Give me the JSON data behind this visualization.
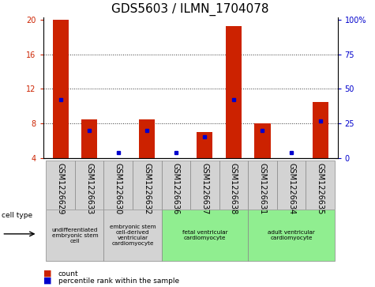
{
  "title": "GDS5603 / ILMN_1704078",
  "samples": [
    "GSM1226629",
    "GSM1226633",
    "GSM1226630",
    "GSM1226632",
    "GSM1226636",
    "GSM1226637",
    "GSM1226638",
    "GSM1226631",
    "GSM1226634",
    "GSM1226635"
  ],
  "counts": [
    20.0,
    8.5,
    4.0,
    8.5,
    4.0,
    7.0,
    19.3,
    8.0,
    4.0,
    10.5
  ],
  "percentiles": [
    42,
    20,
    4,
    20,
    4,
    15,
    42,
    20,
    4,
    27
  ],
  "y_min": 4,
  "y_max": 20,
  "y_ticks": [
    4,
    8,
    12,
    16,
    20
  ],
  "y2_ticks": [
    0,
    25,
    50,
    75,
    100
  ],
  "bar_color": "#cc2200",
  "percentile_color": "#0000cc",
  "grid_color": "#333333",
  "cell_type_groups": [
    {
      "label": "undifferentiated\nembryonic stem\ncell",
      "start": 0,
      "end": 2,
      "color": "#d3d3d3"
    },
    {
      "label": "embryonic stem\ncell-derived\nventricular\ncardiomyocyte",
      "start": 2,
      "end": 4,
      "color": "#d3d3d3"
    },
    {
      "label": "fetal ventricular\ncardiomyocyte",
      "start": 4,
      "end": 7,
      "color": "#90ee90"
    },
    {
      "label": "adult ventricular\ncardiomyocyte",
      "start": 7,
      "end": 10,
      "color": "#90ee90"
    }
  ],
  "title_fontsize": 11,
  "tick_fontsize": 7,
  "label_fontsize": 6
}
